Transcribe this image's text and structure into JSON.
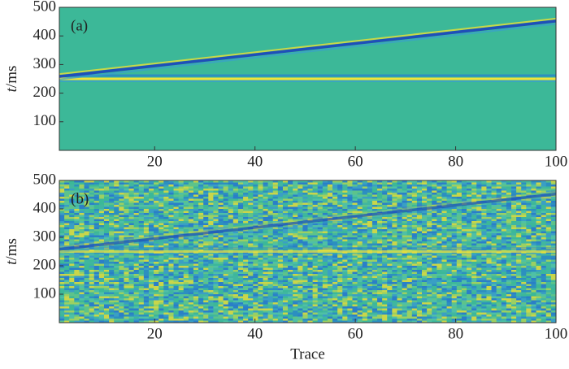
{
  "chart_data": [
    {
      "type": "heatmap",
      "label": "(a)",
      "ylabel": "t/ms",
      "xlim": [
        1,
        100
      ],
      "xticks": [
        20,
        40,
        60,
        80,
        100
      ],
      "ylim": [
        0,
        500
      ],
      "yticks": [
        100,
        200,
        300,
        400,
        500
      ],
      "background": "#3cb898",
      "noise": false,
      "events": [
        {
          "x": [
            1,
            100
          ],
          "y": [
            250,
            250
          ]
        },
        {
          "x": [
            1,
            100
          ],
          "y": [
            258,
            452
          ]
        }
      ]
    },
    {
      "type": "heatmap",
      "label": "(b)",
      "ylabel": "t/ms",
      "xlabel": "Trace",
      "xlim": [
        1,
        100
      ],
      "xticks": [
        20,
        40,
        60,
        80,
        100
      ],
      "ylim": [
        0,
        500
      ],
      "yticks": [
        100,
        200,
        300,
        400,
        500
      ],
      "background": "#3cb898",
      "noise": true,
      "events": [
        {
          "x": [
            1,
            100
          ],
          "y": [
            250,
            250
          ]
        },
        {
          "x": [
            1,
            100
          ],
          "y": [
            258,
            452
          ]
        }
      ]
    }
  ]
}
